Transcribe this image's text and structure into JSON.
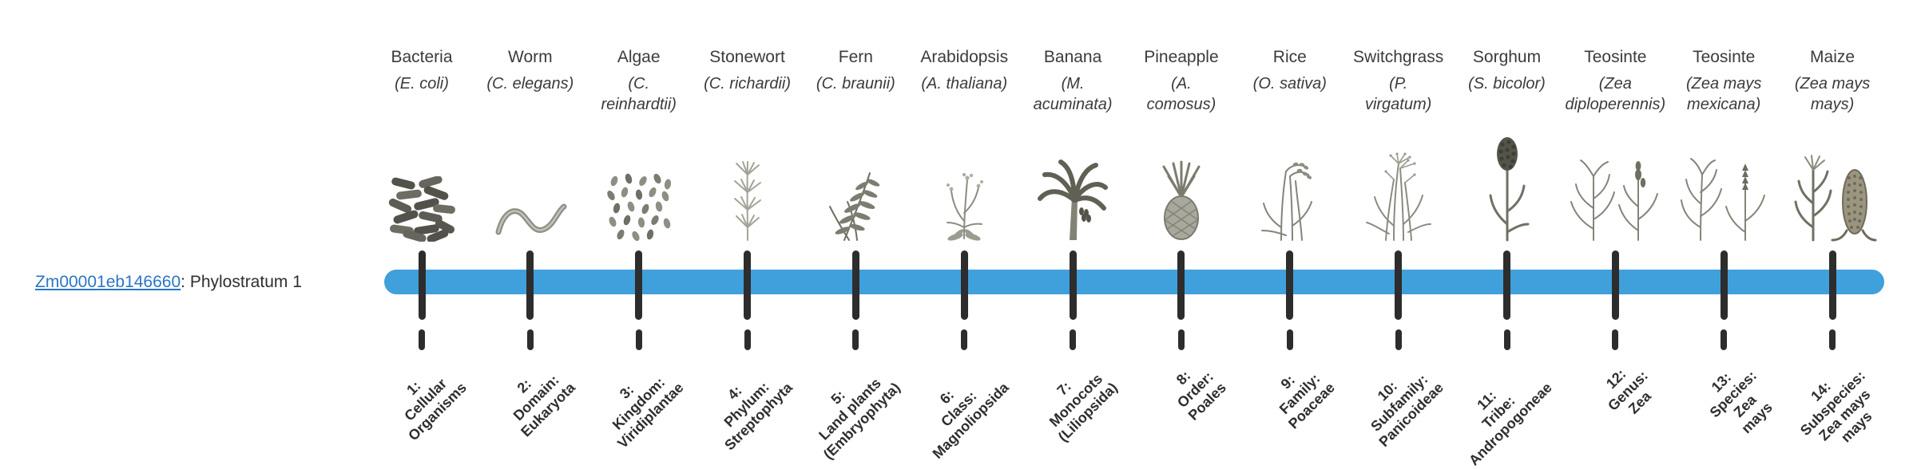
{
  "page": {
    "background": "#ffffff"
  },
  "gene": {
    "id": "Zm00001eb146660",
    "suffix": ": Phylostratum 1"
  },
  "colors": {
    "bar": "#3fa0dc",
    "tick": "#2d2d2d",
    "link": "#2a76c6",
    "text": "#3b3b3b"
  },
  "organisms": [
    {
      "index": 1,
      "name": "Bacteria",
      "scientific": "(E. coli)",
      "icon": "bacteria-icon",
      "stratum_label": "1:\nCellular\nOrganisms"
    },
    {
      "index": 2,
      "name": "Worm",
      "scientific": "(C. elegans)",
      "icon": "worm-icon",
      "stratum_label": "2:\nDomain:\nEukaryota"
    },
    {
      "index": 3,
      "name": "Algae",
      "scientific": "(C.\nreinhardtii)",
      "icon": "algae-icon",
      "stratum_label": "3:\nKingdom:\nViridiplantae"
    },
    {
      "index": 4,
      "name": "Stonewort",
      "scientific": "(C. richardii)",
      "icon": "stonewort-icon",
      "stratum_label": "4:\nPhylum:\nStreptophyta"
    },
    {
      "index": 5,
      "name": "Fern",
      "scientific": "(C. braunii)",
      "icon": "fern-icon",
      "stratum_label": "5:\nLand plants\n(Embryophyta)"
    },
    {
      "index": 6,
      "name": "Arabidopsis",
      "scientific": "(A. thaliana)",
      "icon": "arabidopsis-icon",
      "stratum_label": "6:\nClass:\nMagnoliopsida"
    },
    {
      "index": 7,
      "name": "Banana",
      "scientific": "(M.\nacuminata)",
      "icon": "banana-icon",
      "stratum_label": "7:\nMonocots\n(Liliopsida)"
    },
    {
      "index": 8,
      "name": "Pineapple",
      "scientific": "(A.\ncomosus)",
      "icon": "pineapple-icon",
      "stratum_label": "8:\nOrder:\nPoales"
    },
    {
      "index": 9,
      "name": "Rice",
      "scientific": "(O. sativa)",
      "icon": "rice-icon",
      "stratum_label": "9:\nFamily:\nPoaceae"
    },
    {
      "index": 10,
      "name": "Switchgrass",
      "scientific": "(P.\nvirgatum)",
      "icon": "switchgrass-icon",
      "stratum_label": "10:\nSubfamily:\nPanicoideae"
    },
    {
      "index": 11,
      "name": "Sorghum",
      "scientific": "(S. bicolor)",
      "icon": "sorghum-icon",
      "stratum_label": "11:\nTribe:\nAndropogoneae"
    },
    {
      "index": 12,
      "name": "Teosinte",
      "scientific": "(Zea\ndiploperennis)",
      "icon": "teosinte-diploperennis-icon",
      "stratum_label": "12:\nGenus:\nZea"
    },
    {
      "index": 13,
      "name": "Teosinte",
      "scientific": "(Zea mays\nmexicana)",
      "icon": "teosinte-mexicana-icon",
      "stratum_label": "13:\nSpecies:\nZea\nmays"
    },
    {
      "index": 14,
      "name": "Maize",
      "scientific": "(Zea mays\nmays)",
      "icon": "maize-icon",
      "stratum_label": "14:\nSubspecies:\nZea mays\nmays"
    }
  ]
}
